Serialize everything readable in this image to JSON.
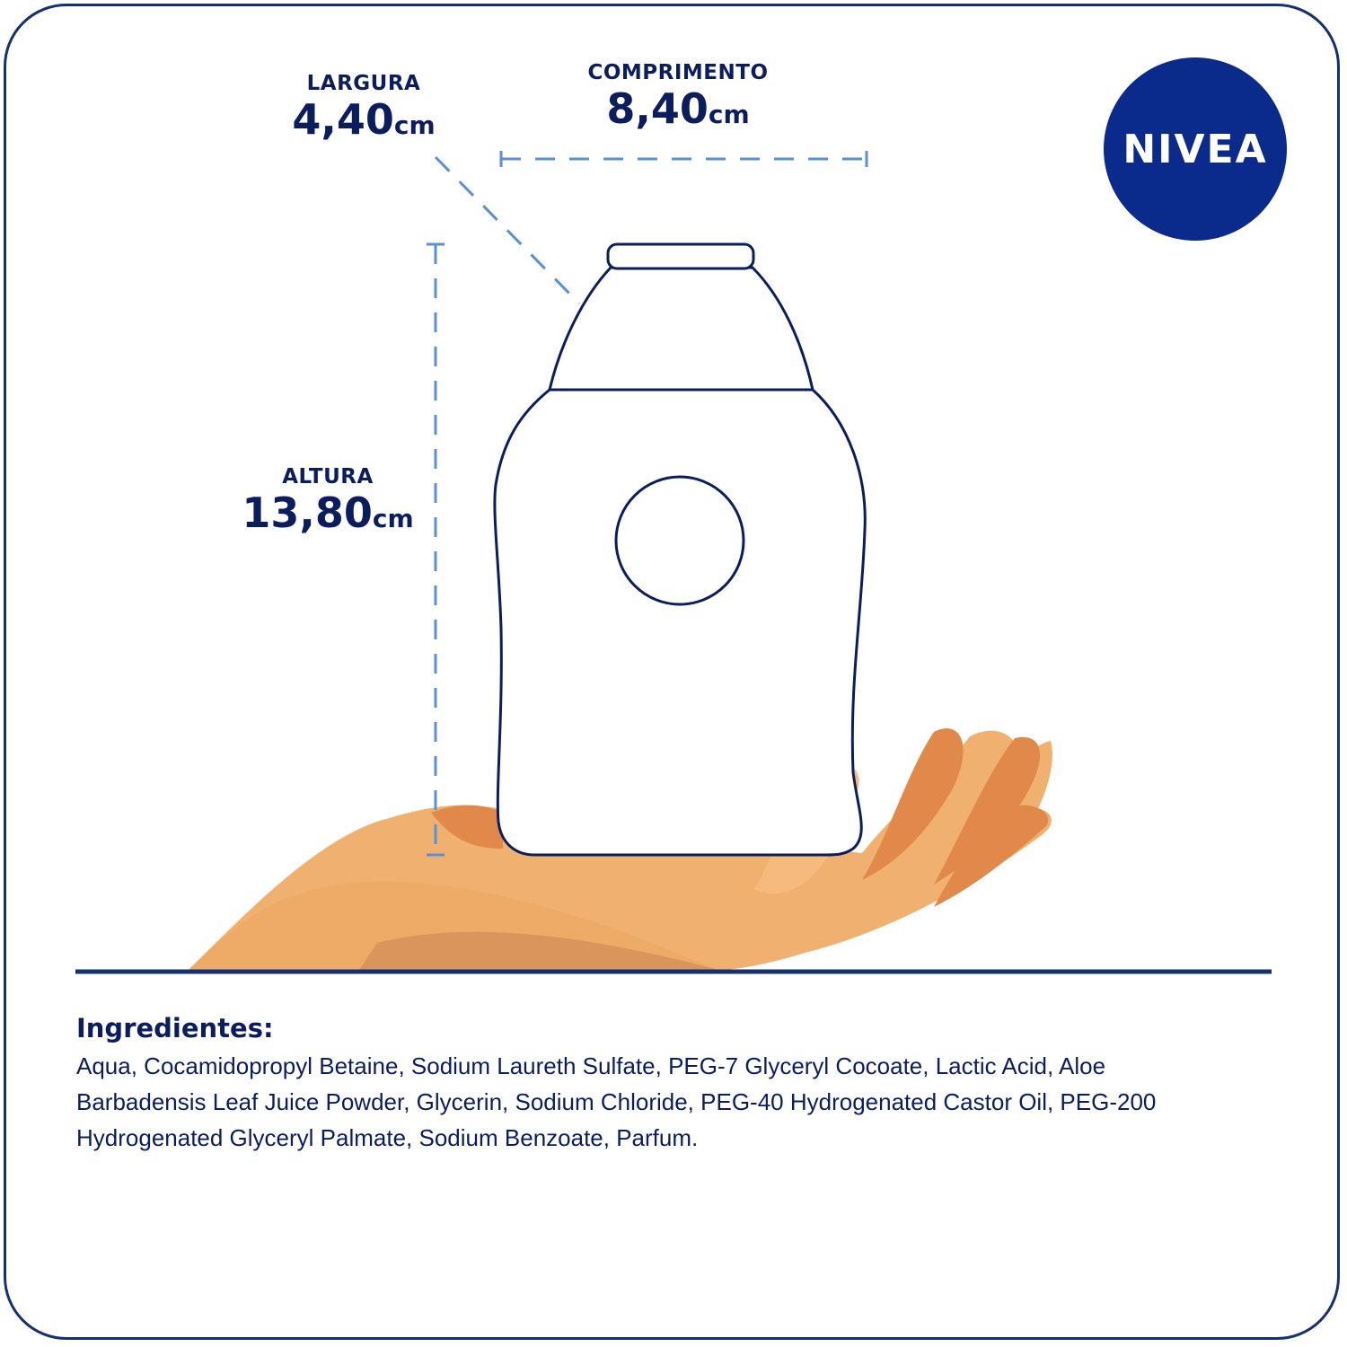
{
  "dimensions": {
    "width": {
      "label": "LARGURA",
      "value": "4,40",
      "unit": "cm"
    },
    "length": {
      "label": "COMPRIMENTO",
      "value": "8,40",
      "unit": "cm"
    },
    "height": {
      "label": "ALTURA",
      "value": "13,80",
      "unit": "cm"
    }
  },
  "brand": {
    "logo_text": "NIVEA",
    "color": "#0a2a8c"
  },
  "ingredients": {
    "title": "Ingredientes:",
    "lines": [
      "Aqua, Cocamidopropyl Betaine, Sodium Laureth Sulfate, PEG-7 Glyceryl Cocoate, Lactic Acid, Aloe",
      "Barbadensis Leaf Juice Powder, Glycerin, Sodium Chloride, PEG-40 Hydrogenated Castor Oil, PEG-200",
      "Hydrogenated Glyceryl Palmate, Sodium Benzoate, Parfum."
    ]
  },
  "colors": {
    "text": "#0c1d5e",
    "dimension_lines": "#5b8fd6",
    "skin": "#f0b070"
  }
}
